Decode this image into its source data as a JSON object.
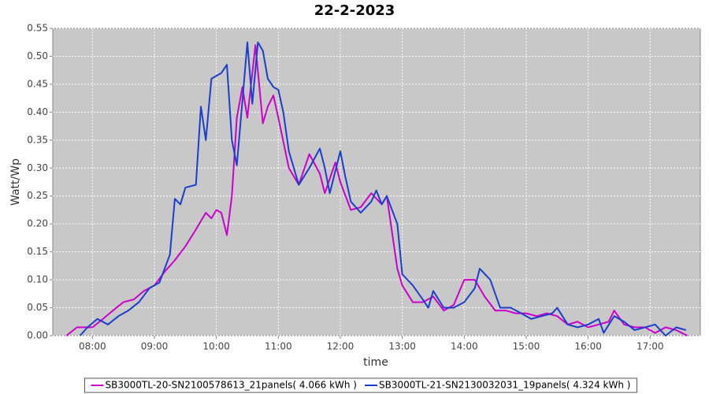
{
  "chart_data": {
    "type": "line",
    "title": "22-2-2023",
    "x_label": "time",
    "y_label": "Watt/Wp",
    "xlim": [
      7.36,
      17.81
    ],
    "xticks": [
      {
        "value": 8,
        "label": "08:00"
      },
      {
        "value": 9,
        "label": "09:00"
      },
      {
        "value": 10,
        "label": "10:00"
      },
      {
        "value": 11,
        "label": "11:00"
      },
      {
        "value": 12,
        "label": "12:00"
      },
      {
        "value": 13,
        "label": "13:00"
      },
      {
        "value": 14,
        "label": "14:00"
      },
      {
        "value": 15,
        "label": "15:00"
      },
      {
        "value": 16,
        "label": "16:00"
      },
      {
        "value": 17,
        "label": "17:00"
      }
    ],
    "ylim": [
      0,
      0.55
    ],
    "yticks": [
      {
        "value": 0,
        "label": "0.00"
      },
      {
        "value": 0.05,
        "label": "0.05"
      },
      {
        "value": 0.1,
        "label": "0.10"
      },
      {
        "value": 0.15,
        "label": "0.15"
      },
      {
        "value": 0.2,
        "label": "0.20"
      },
      {
        "value": 0.25,
        "label": "0.25"
      },
      {
        "value": 0.3,
        "label": "0.30"
      },
      {
        "value": 0.35,
        "label": "0.35"
      },
      {
        "value": 0.4,
        "label": "0.40"
      },
      {
        "value": 0.45,
        "label": "0.45"
      },
      {
        "value": 0.5,
        "label": "0.50"
      },
      {
        "value": 0.55,
        "label": "0.55"
      }
    ],
    "grid": true,
    "legend": "bottom",
    "series": [
      {
        "name": "SB3000TL-20-SN2100578613_21panels( 4.066 kWh )",
        "color": "#cc00cc",
        "x": [
          7.58,
          7.75,
          8.0,
          8.17,
          8.33,
          8.5,
          8.67,
          8.83,
          9.0,
          9.17,
          9.33,
          9.5,
          9.67,
          9.83,
          9.92,
          10.0,
          10.08,
          10.17,
          10.25,
          10.33,
          10.42,
          10.5,
          10.58,
          10.63,
          10.75,
          10.83,
          10.92,
          11.0,
          11.17,
          11.33,
          11.5,
          11.67,
          11.75,
          11.92,
          12.0,
          12.17,
          12.33,
          12.5,
          12.67,
          12.75,
          12.92,
          13.0,
          13.17,
          13.33,
          13.5,
          13.67,
          13.83,
          14.0,
          14.17,
          14.33,
          14.5,
          14.67,
          14.83,
          15.0,
          15.17,
          15.33,
          15.5,
          15.67,
          15.83,
          16.0,
          16.17,
          16.33,
          16.42,
          16.58,
          16.75,
          16.92,
          17.08,
          17.25,
          17.42,
          17.6
        ],
        "values": [
          0,
          0.015,
          0.015,
          0.03,
          0.045,
          0.06,
          0.065,
          0.08,
          0.09,
          0.115,
          0.135,
          0.16,
          0.19,
          0.22,
          0.21,
          0.225,
          0.22,
          0.18,
          0.25,
          0.39,
          0.445,
          0.39,
          0.47,
          0.52,
          0.38,
          0.41,
          0.43,
          0.39,
          0.3,
          0.27,
          0.325,
          0.29,
          0.255,
          0.31,
          0.275,
          0.225,
          0.23,
          0.255,
          0.235,
          0.25,
          0.12,
          0.09,
          0.06,
          0.06,
          0.07,
          0.045,
          0.055,
          0.1,
          0.1,
          0.07,
          0.045,
          0.045,
          0.04,
          0.04,
          0.035,
          0.04,
          0.035,
          0.02,
          0.025,
          0.015,
          0.02,
          0.025,
          0.045,
          0.02,
          0.015,
          0.015,
          0.005,
          0.015,
          0.01,
          0
        ]
      },
      {
        "name": "SB3000TL-21-SN2130032031_19panels( 4.324 kWh )",
        "color": "#1a3fcc",
        "x": [
          7.8,
          7.92,
          8.08,
          8.25,
          8.42,
          8.58,
          8.75,
          8.92,
          9.08,
          9.25,
          9.33,
          9.42,
          9.5,
          9.67,
          9.75,
          9.83,
          9.92,
          10.0,
          10.08,
          10.17,
          10.25,
          10.33,
          10.42,
          10.5,
          10.58,
          10.67,
          10.75,
          10.83,
          10.92,
          11.0,
          11.08,
          11.17,
          11.33,
          11.5,
          11.67,
          11.75,
          11.83,
          12.0,
          12.08,
          12.17,
          12.33,
          12.5,
          12.58,
          12.67,
          12.75,
          12.92,
          13.0,
          13.17,
          13.33,
          13.42,
          13.5,
          13.67,
          13.83,
          14.0,
          14.17,
          14.25,
          14.42,
          14.58,
          14.75,
          14.92,
          15.08,
          15.25,
          15.42,
          15.5,
          15.67,
          15.83,
          16.0,
          16.17,
          16.25,
          16.42,
          16.58,
          16.75,
          16.92,
          17.08,
          17.25,
          17.42,
          17.58
        ],
        "values": [
          0,
          0.015,
          0.03,
          0.02,
          0.035,
          0.045,
          0.06,
          0.085,
          0.095,
          0.145,
          0.245,
          0.235,
          0.265,
          0.27,
          0.41,
          0.35,
          0.46,
          0.465,
          0.47,
          0.485,
          0.35,
          0.305,
          0.42,
          0.525,
          0.415,
          0.525,
          0.51,
          0.46,
          0.445,
          0.44,
          0.4,
          0.33,
          0.27,
          0.3,
          0.335,
          0.3,
          0.255,
          0.33,
          0.285,
          0.24,
          0.22,
          0.24,
          0.26,
          0.235,
          0.25,
          0.2,
          0.11,
          0.09,
          0.065,
          0.05,
          0.08,
          0.05,
          0.05,
          0.06,
          0.085,
          0.12,
          0.1,
          0.05,
          0.05,
          0.04,
          0.03,
          0.035,
          0.04,
          0.05,
          0.02,
          0.015,
          0.02,
          0.03,
          0.005,
          0.035,
          0.025,
          0.01,
          0.015,
          0.02,
          0,
          0.015,
          0.01
        ]
      }
    ]
  }
}
